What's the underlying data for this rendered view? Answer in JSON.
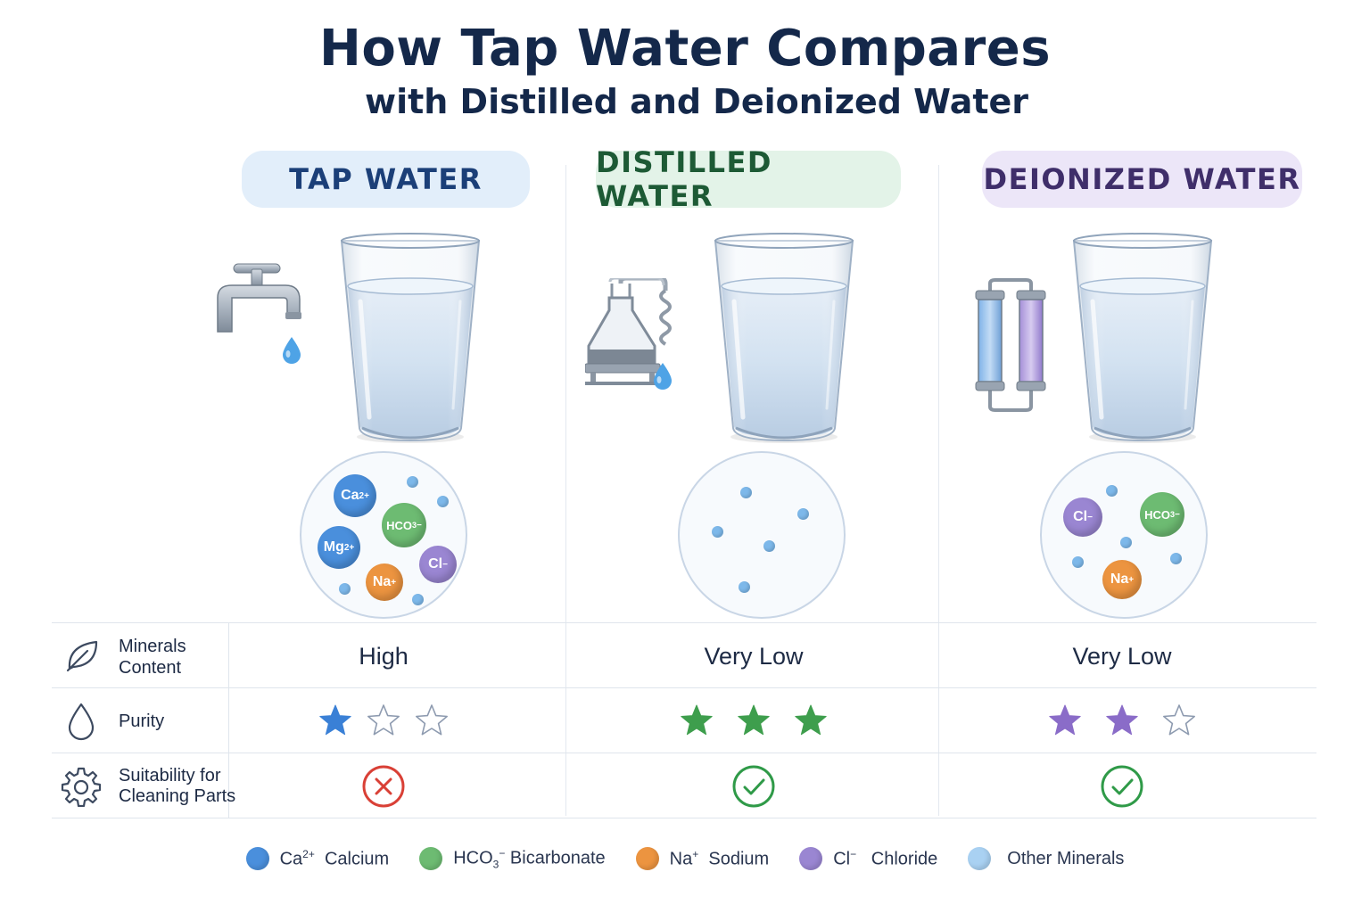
{
  "title": "How Tap Water Compares",
  "subtitle": "with Distilled and Deionized Water",
  "columns": [
    {
      "name": "TAP WATER",
      "pill_bg": "#e2eefa",
      "pill_text": "#1b3f78",
      "star_color": "#3a80d6",
      "minerals": "High",
      "purity_stars": 1,
      "suitable": false
    },
    {
      "name": "DISTILLED WATER",
      "pill_bg": "#e3f3e8",
      "pill_text": "#1d5a35",
      "star_color": "#3e9e4d",
      "minerals": "Very Low",
      "purity_stars": 3,
      "suitable": true
    },
    {
      "name": "DEIONIZED WATER",
      "pill_bg": "#ece6f8",
      "pill_text": "#3f2e6a",
      "star_color": "#8a6cc8",
      "minerals": "Very Low",
      "purity_stars": 2,
      "suitable": true
    }
  ],
  "ions": {
    "ca": "Ca",
    "ca_charge": "2+",
    "mg": "Mg",
    "mg_charge": "2+",
    "hco3_a": "HCO",
    "hco3_b": "3",
    "hco3_charge": "−",
    "na": "Na",
    "na_charge": "+",
    "cl": "Cl",
    "cl_charge": "−"
  },
  "rows": {
    "minerals_label_1": "Minerals",
    "minerals_label_2": "Content",
    "purity_label": "Purity",
    "suitability_label_1": "Suitability for",
    "suitability_label_2": "Cleaning Parts"
  },
  "legend": [
    {
      "sym": "Ca",
      "sup": "2+",
      "sub": "",
      "name": "Calcium",
      "color": "#4a8fdc"
    },
    {
      "sym": "HCO",
      "sup": "",
      "sub": "3",
      "suffix": "−",
      "name": "Bicarbonate",
      "color": "#6dbb72"
    },
    {
      "sym": "Na",
      "sup": "+",
      "sub": "",
      "name": "Sodium",
      "color": "#ec9440"
    },
    {
      "sym": "Cl",
      "sup": "−",
      "sub": "",
      "name": "Chloride",
      "color": "#9a86d2"
    },
    {
      "sym": "",
      "sup": "",
      "sub": "",
      "name": "Other Minerals",
      "color": "#a9d1f2"
    }
  ],
  "colors": {
    "calcium": "#4a8fdc",
    "bicarbonate": "#6dbb72",
    "sodium": "#ec9440",
    "chloride": "#9a86d2",
    "other": "#7db8ea",
    "cross": "#d94036",
    "check": "#2f9a48",
    "title": "#14284a"
  },
  "icons": {
    "tap": "faucet-icon",
    "distilled": "distillation-flask-icon",
    "deionized": "ion-exchange-column-icon",
    "minerals": "leaf-icon",
    "purity": "drop-icon",
    "suitability": "gear-icon"
  }
}
